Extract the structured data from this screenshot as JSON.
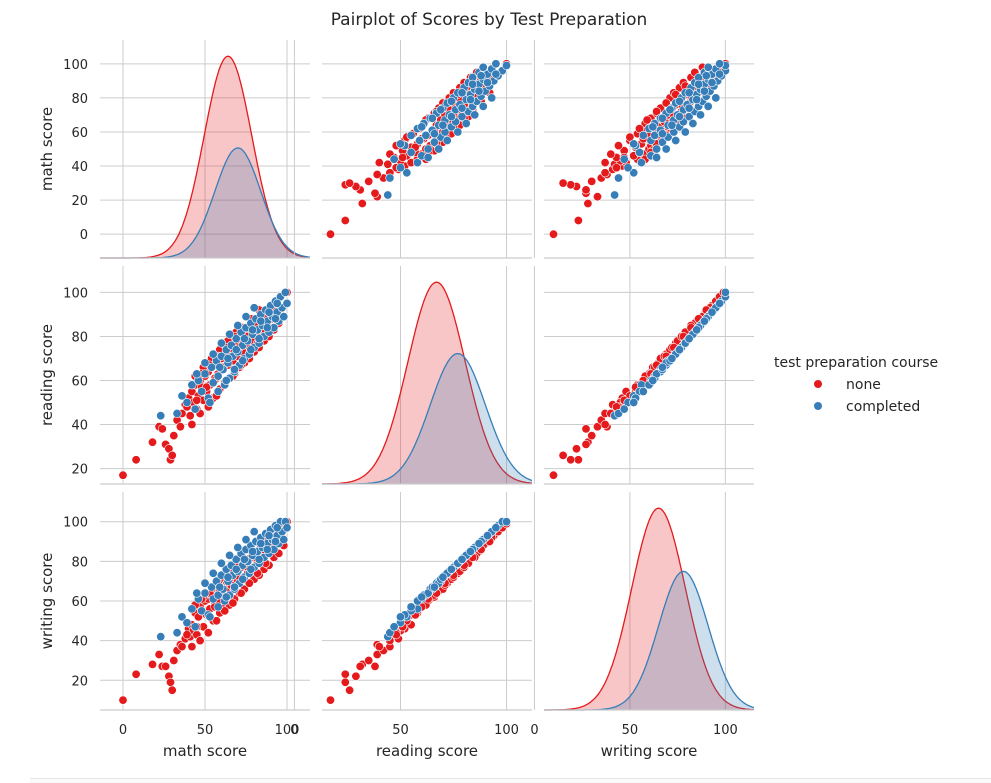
{
  "chart_data": {
    "type": "scatter",
    "title": "Pairplot of Scores by Test Preparation",
    "variables": [
      "math score",
      "reading score",
      "writing score"
    ],
    "axis_limits": {
      "math score": [
        -14,
        114
      ],
      "reading score": [
        13,
        112
      ],
      "writing score": [
        5,
        115
      ]
    },
    "ticks": {
      "math score": [
        0,
        20,
        40,
        60,
        80,
        100
      ],
      "reading score": [
        20,
        40,
        60,
        80,
        100
      ],
      "writing score": [
        20,
        40,
        60,
        80,
        100
      ],
      "x_math score": [
        0,
        50,
        100
      ],
      "x_reading score": [
        0,
        50,
        100
      ],
      "x_writing score": [
        0,
        50,
        100
      ]
    },
    "grid": true,
    "legend": {
      "title": "test preparation course",
      "placement": "right",
      "entries": [
        {
          "name": "none",
          "color": "#e41a1c"
        },
        {
          "name": "completed",
          "color": "#377eb8"
        }
      ]
    },
    "series": [
      {
        "name": "none",
        "color": "#e41a1c",
        "points": [
          [
            0,
            17,
            10
          ],
          [
            8,
            24,
            23
          ],
          [
            18,
            32,
            28
          ],
          [
            22,
            39,
            33
          ],
          [
            24,
            38,
            27
          ],
          [
            26,
            31,
            27
          ],
          [
            28,
            29,
            22
          ],
          [
            29,
            24,
            19
          ],
          [
            30,
            26,
            15
          ],
          [
            31,
            35,
            30
          ],
          [
            33,
            42,
            35
          ],
          [
            35,
            39,
            38
          ],
          [
            36,
            45,
            37
          ],
          [
            38,
            49,
            41
          ],
          [
            40,
            52,
            46
          ],
          [
            41,
            44,
            42
          ],
          [
            42,
            55,
            48
          ],
          [
            43,
            50,
            45
          ],
          [
            44,
            58,
            54
          ],
          [
            45,
            47,
            43
          ],
          [
            46,
            53,
            52
          ],
          [
            47,
            60,
            57
          ],
          [
            48,
            57,
            55
          ],
          [
            49,
            51,
            47
          ],
          [
            50,
            62,
            60
          ],
          [
            51,
            55,
            53
          ],
          [
            52,
            64,
            61
          ],
          [
            53,
            58,
            56
          ],
          [
            54,
            66,
            63
          ],
          [
            55,
            52,
            50
          ],
          [
            56,
            61,
            58
          ],
          [
            57,
            68,
            65
          ],
          [
            58,
            63,
            60
          ],
          [
            59,
            56,
            54
          ],
          [
            60,
            70,
            67
          ],
          [
            61,
            65,
            64
          ],
          [
            62,
            59,
            57
          ],
          [
            63,
            72,
            70
          ],
          [
            64,
            67,
            66
          ],
          [
            65,
            61,
            58
          ],
          [
            66,
            74,
            72
          ],
          [
            67,
            69,
            67
          ],
          [
            68,
            63,
            61
          ],
          [
            69,
            77,
            75
          ],
          [
            70,
            71,
            70
          ],
          [
            71,
            66,
            64
          ],
          [
            72,
            79,
            77
          ],
          [
            73,
            73,
            72
          ],
          [
            74,
            68,
            66
          ],
          [
            75,
            82,
            80
          ],
          [
            76,
            76,
            74
          ],
          [
            77,
            70,
            69
          ],
          [
            78,
            84,
            82
          ],
          [
            79,
            78,
            77
          ],
          [
            80,
            73,
            71
          ],
          [
            81,
            87,
            85
          ],
          [
            82,
            81,
            80
          ],
          [
            83,
            75,
            73
          ],
          [
            84,
            89,
            88
          ],
          [
            85,
            83,
            82
          ],
          [
            86,
            78,
            76
          ],
          [
            87,
            91,
            90
          ],
          [
            88,
            86,
            85
          ],
          [
            89,
            80,
            78
          ],
          [
            90,
            94,
            93
          ],
          [
            91,
            88,
            87
          ],
          [
            92,
            83,
            82
          ],
          [
            93,
            96,
            95
          ],
          [
            94,
            90,
            89
          ],
          [
            95,
            86,
            84
          ],
          [
            96,
            98,
            97
          ],
          [
            97,
            93,
            92
          ],
          [
            98,
            89,
            88
          ],
          [
            99,
            100,
            99
          ],
          [
            100,
            100,
            100
          ],
          [
            42,
            40,
            37
          ],
          [
            47,
            45,
            40
          ],
          [
            52,
            48,
            44
          ],
          [
            57,
            53,
            50
          ],
          [
            62,
            58,
            55
          ],
          [
            67,
            62,
            59
          ],
          [
            72,
            67,
            64
          ],
          [
            77,
            72,
            69
          ],
          [
            82,
            77,
            74
          ],
          [
            87,
            82,
            79
          ],
          [
            44,
            62,
            58
          ],
          [
            49,
            66,
            62
          ],
          [
            54,
            70,
            66
          ],
          [
            59,
            74,
            71
          ],
          [
            64,
            78,
            75
          ],
          [
            69,
            82,
            79
          ],
          [
            39,
            48,
            43
          ],
          [
            45,
            51,
            47
          ],
          [
            51,
            57,
            53
          ],
          [
            56,
            60,
            57
          ],
          [
            61,
            66,
            63
          ],
          [
            66,
            71,
            68
          ],
          [
            71,
            75,
            72
          ],
          [
            76,
            80,
            77
          ],
          [
            81,
            85,
            82
          ],
          [
            86,
            88,
            86
          ],
          [
            91,
            92,
            90
          ],
          [
            48,
            63,
            61
          ],
          [
            53,
            67,
            64
          ],
          [
            58,
            71,
            69
          ],
          [
            63,
            75,
            73
          ],
          [
            68,
            80,
            78
          ],
          [
            73,
            84,
            82
          ],
          [
            78,
            88,
            86
          ],
          [
            83,
            92,
            90
          ]
        ]
      },
      {
        "name": "completed",
        "color": "#377eb8",
        "points": [
          [
            23,
            44,
            42
          ],
          [
            33,
            45,
            44
          ],
          [
            36,
            53,
            52
          ],
          [
            39,
            50,
            49
          ],
          [
            42,
            58,
            56
          ],
          [
            44,
            47,
            47
          ],
          [
            46,
            60,
            61
          ],
          [
            48,
            55,
            55
          ],
          [
            50,
            63,
            64
          ],
          [
            52,
            52,
            53
          ],
          [
            54,
            66,
            67
          ],
          [
            55,
            59,
            61
          ],
          [
            57,
            69,
            70
          ],
          [
            58,
            62,
            63
          ],
          [
            60,
            71,
            73
          ],
          [
            61,
            65,
            66
          ],
          [
            62,
            58,
            60
          ],
          [
            63,
            74,
            76
          ],
          [
            64,
            68,
            70
          ],
          [
            65,
            61,
            63
          ],
          [
            66,
            76,
            78
          ],
          [
            67,
            71,
            73
          ],
          [
            68,
            64,
            66
          ],
          [
            69,
            79,
            81
          ],
          [
            70,
            73,
            75
          ],
          [
            71,
            67,
            69
          ],
          [
            72,
            82,
            84
          ],
          [
            73,
            76,
            78
          ],
          [
            74,
            70,
            72
          ],
          [
            75,
            84,
            86
          ],
          [
            76,
            78,
            80
          ],
          [
            77,
            72,
            74
          ],
          [
            78,
            86,
            88
          ],
          [
            79,
            81,
            83
          ],
          [
            80,
            75,
            77
          ],
          [
            81,
            88,
            90
          ],
          [
            82,
            83,
            85
          ],
          [
            83,
            77,
            79
          ],
          [
            84,
            90,
            92
          ],
          [
            85,
            85,
            87
          ],
          [
            86,
            80,
            82
          ],
          [
            87,
            92,
            94
          ],
          [
            88,
            87,
            89
          ],
          [
            89,
            82,
            84
          ],
          [
            90,
            94,
            96
          ],
          [
            91,
            89,
            91
          ],
          [
            92,
            84,
            86
          ],
          [
            93,
            96,
            98
          ],
          [
            94,
            91,
            93
          ],
          [
            95,
            87,
            89
          ],
          [
            96,
            98,
            100
          ],
          [
            97,
            93,
            95
          ],
          [
            98,
            89,
            91
          ],
          [
            99,
            100,
            100
          ],
          [
            100,
            95,
            97
          ],
          [
            45,
            63,
            64
          ],
          [
            50,
            68,
            69
          ],
          [
            55,
            72,
            74
          ],
          [
            60,
            77,
            79
          ],
          [
            65,
            81,
            83
          ],
          [
            70,
            85,
            87
          ],
          [
            75,
            89,
            91
          ],
          [
            80,
            93,
            95
          ],
          [
            53,
            50,
            52
          ],
          [
            58,
            55,
            57
          ],
          [
            63,
            60,
            62
          ],
          [
            68,
            65,
            67
          ],
          [
            73,
            69,
            71
          ],
          [
            78,
            74,
            76
          ],
          [
            83,
            79,
            81
          ],
          [
            88,
            84,
            86
          ],
          [
            93,
            88,
            90
          ],
          [
            59,
            66,
            67
          ],
          [
            64,
            70,
            72
          ],
          [
            69,
            74,
            76
          ],
          [
            74,
            79,
            81
          ],
          [
            79,
            83,
            85
          ],
          [
            84,
            87,
            89
          ],
          [
            89,
            91,
            93
          ],
          [
            94,
            95,
            97
          ]
        ]
      }
    ],
    "kde": [
      {
        "variable": "math score",
        "series": "none",
        "mean": 64,
        "sd": 14.5,
        "peak": 99
      },
      {
        "variable": "math score",
        "series": "completed",
        "mean": 70,
        "sd": 14,
        "peak": 54
      },
      {
        "variable": "reading score",
        "series": "none",
        "mean": 67,
        "sd": 13.5,
        "peak": 99
      },
      {
        "variable": "reading score",
        "series": "completed",
        "mean": 77,
        "sd": 13,
        "peak": 64
      },
      {
        "variable": "writing score",
        "series": "none",
        "mean": 65,
        "sd": 14,
        "peak": 99
      },
      {
        "variable": "writing score",
        "series": "completed",
        "mean": 78,
        "sd": 13,
        "peak": 68
      }
    ]
  }
}
